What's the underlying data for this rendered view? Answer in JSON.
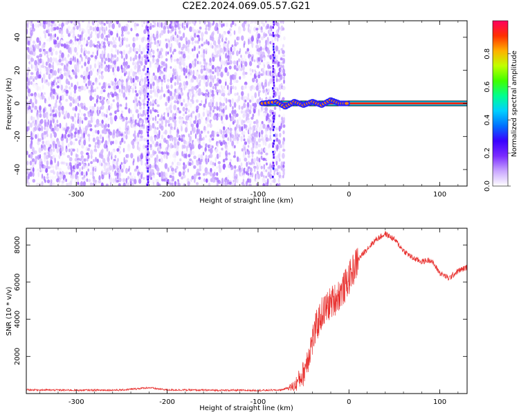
{
  "figure": {
    "title": "C2E2.2024.069.05.57.G21"
  },
  "chart_data": [
    {
      "type": "heatmap",
      "title": "",
      "xlabel": "Height of straight line (km)",
      "ylabel": "Frequency (Hz)",
      "xlim": [
        -355,
        130
      ],
      "ylim": [
        -50,
        50
      ],
      "x_ticks": [
        -300,
        -200,
        -100,
        0,
        100
      ],
      "y_ticks": [
        -40,
        -20,
        0,
        20,
        40
      ],
      "colorbar": {
        "label": "Normalized spectral amplitude",
        "range": [
          0,
          1
        ],
        "ticks": [
          0.0,
          0.2,
          0.4,
          0.6,
          0.8
        ],
        "colors": [
          "#ffffff",
          "#c9a6ff",
          "#7b2cff",
          "#3a00ff",
          "#0070ff",
          "#00d0ff",
          "#00ff90",
          "#40ff00",
          "#c0ff00",
          "#ffb000",
          "#ff3000",
          "#ff0060"
        ]
      },
      "noise_region": {
        "x": [
          -355,
          -72
        ],
        "amplitude_range": [
          0.0,
          0.15
        ]
      },
      "carrier_line": {
        "x_start": -95,
        "x_end": 130,
        "frequency": 0,
        "amplitude": 0.92
      },
      "carrier_wiggle": {
        "x": [
          -95,
          -80,
          -70,
          -60,
          -50,
          -40,
          -30,
          -20,
          -10,
          0
        ],
        "frequency": [
          0,
          1,
          -2,
          1,
          -1,
          1,
          -1,
          2,
          0,
          0
        ]
      }
    },
    {
      "type": "line",
      "title": "",
      "xlabel": "Height of straight line (km)",
      "ylabel": "SNR (10 * v/v)",
      "xlim": [
        -355,
        130
      ],
      "ylim": [
        0,
        8900
      ],
      "x_ticks": [
        -300,
        -200,
        -100,
        0,
        100
      ],
      "y_ticks": [
        2000,
        4000,
        6000,
        8000
      ],
      "series_color": "#e8302e",
      "series": [
        {
          "x": [
            -355,
            -300,
            -250,
            -220,
            -210,
            -200,
            -150,
            -100,
            -75,
            -60,
            -50,
            -45,
            -40,
            -35,
            -30,
            -25,
            -20,
            -15,
            -10,
            -5,
            0,
            10,
            20,
            30,
            40,
            50,
            60,
            70,
            80,
            90,
            100,
            110,
            120,
            130
          ],
          "y": [
            200,
            180,
            190,
            320,
            250,
            200,
            180,
            170,
            190,
            400,
            1100,
            2000,
            2900,
            3700,
            4300,
            4600,
            4900,
            5100,
            5400,
            5700,
            6200,
            7200,
            7800,
            8300,
            8600,
            8300,
            7700,
            7300,
            7100,
            7200,
            6500,
            6200,
            6600,
            6800
          ]
        }
      ]
    }
  ]
}
